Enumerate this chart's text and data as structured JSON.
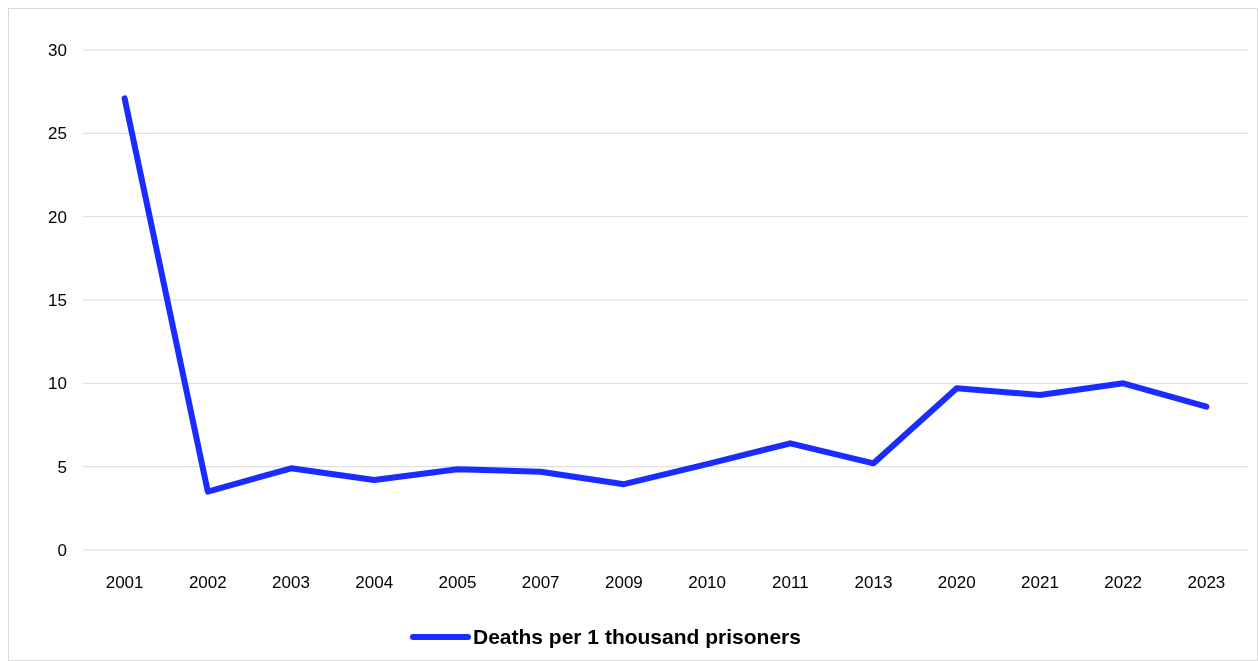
{
  "chart_data": {
    "type": "line",
    "categories": [
      "2001",
      "2002",
      "2003",
      "2004",
      "2005",
      "2007",
      "2009",
      "2010",
      "2011",
      "2013",
      "2020",
      "2021",
      "2022",
      "2023"
    ],
    "series": [
      {
        "name": "Deaths per 1 thousand prisoners",
        "color": "#1a2cff",
        "values": [
          27.1,
          3.5,
          4.9,
          4.2,
          4.85,
          4.7,
          3.95,
          5.15,
          6.4,
          5.2,
          9.7,
          9.3,
          10.0,
          8.6
        ]
      }
    ],
    "ylim": [
      0,
      30
    ],
    "yticks": [
      0,
      5,
      10,
      15,
      20,
      25,
      30
    ],
    "grid": "y",
    "legend": "bottom",
    "marker": "none",
    "line_style": "solid"
  }
}
